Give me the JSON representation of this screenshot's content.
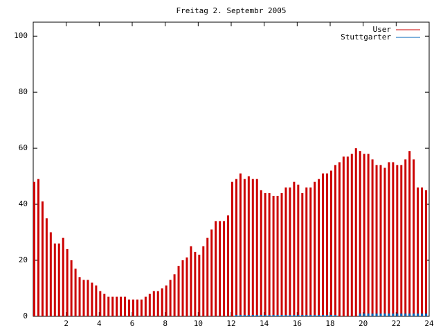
{
  "chart_data": {
    "type": "bar",
    "title": "Freitag 2. Septembr 2005",
    "x": [
      0,
      0.25,
      0.5,
      0.75,
      1,
      1.25,
      1.5,
      1.75,
      2,
      2.25,
      2.5,
      2.75,
      3,
      3.25,
      3.5,
      3.75,
      4,
      4.25,
      4.5,
      4.75,
      5,
      5.25,
      5.5,
      5.75,
      6,
      6.25,
      6.5,
      6.75,
      7,
      7.25,
      7.5,
      7.75,
      8,
      8.25,
      8.5,
      8.75,
      9,
      9.25,
      9.5,
      9.75,
      10,
      10.25,
      10.5,
      10.75,
      11,
      11.25,
      11.5,
      11.75,
      12,
      12.25,
      12.5,
      12.75,
      13,
      13.25,
      13.5,
      13.75,
      14,
      14.25,
      14.5,
      14.75,
      15,
      15.25,
      15.5,
      15.75,
      16,
      16.25,
      16.5,
      16.75,
      17,
      17.25,
      17.5,
      17.75,
      18,
      18.25,
      18.5,
      18.75,
      19,
      19.25,
      19.5,
      19.75,
      20,
      20.25,
      20.5,
      20.75,
      21,
      21.25,
      21.5,
      21.75,
      22,
      22.25,
      22.5,
      22.75,
      23,
      23.25,
      23.5,
      23.75
    ],
    "series": [
      {
        "name": "User",
        "color": "#cc0000",
        "values": [
          48,
          49,
          41,
          35,
          30,
          26,
          26,
          28,
          24,
          20,
          17,
          14,
          13,
          13,
          12,
          11,
          9,
          8,
          7,
          7,
          7,
          7,
          7,
          6,
          6,
          6,
          6,
          7,
          8,
          9,
          9,
          10,
          11,
          13,
          15,
          18,
          20,
          21,
          25,
          23,
          22,
          25,
          28,
          31,
          34,
          34,
          34,
          36,
          48,
          49,
          51,
          49,
          50,
          49,
          49,
          45,
          44,
          44,
          43,
          43,
          44,
          46,
          46,
          48,
          47,
          44,
          46,
          46,
          48,
          49,
          51,
          51,
          52,
          54,
          55,
          57,
          57,
          58,
          60,
          59,
          58,
          58,
          56,
          54,
          54,
          53,
          55,
          55,
          54,
          54,
          56,
          59,
          56,
          46,
          46,
          45
        ]
      },
      {
        "name": "Stuttgarter",
        "color": "#0066bb",
        "values": [
          0,
          0,
          0,
          0,
          0,
          0,
          0,
          0,
          0,
          0,
          0,
          0,
          0,
          0,
          0,
          0,
          0,
          0,
          0,
          0,
          0,
          0,
          0,
          0,
          0,
          0,
          0,
          0,
          0,
          0,
          0,
          0,
          0,
          0,
          0,
          0,
          0,
          0,
          0,
          0,
          0,
          0,
          0,
          0,
          0,
          0,
          0,
          0,
          0,
          0.5,
          0.5,
          0.5,
          0.5,
          0.5,
          0.5,
          0.5,
          0.5,
          0.5,
          0.5,
          0.5,
          0.5,
          0.5,
          0.5,
          0.5,
          0.5,
          0.5,
          0.5,
          0.5,
          0.5,
          0.5,
          0.5,
          0.5,
          0.5,
          0.5,
          0,
          0,
          0,
          0,
          0,
          1,
          1,
          1,
          1,
          1,
          1,
          1,
          1,
          1,
          1,
          1,
          1,
          1,
          1,
          1,
          1,
          1
        ]
      }
    ],
    "xlim": [
      0,
      24
    ],
    "xticks": [
      2,
      4,
      6,
      8,
      10,
      12,
      14,
      16,
      18,
      20,
      22,
      24
    ],
    "ylim": [
      0,
      105
    ],
    "yticks": [
      0,
      20,
      40,
      60,
      80,
      100
    ],
    "legend": "upper-right"
  }
}
